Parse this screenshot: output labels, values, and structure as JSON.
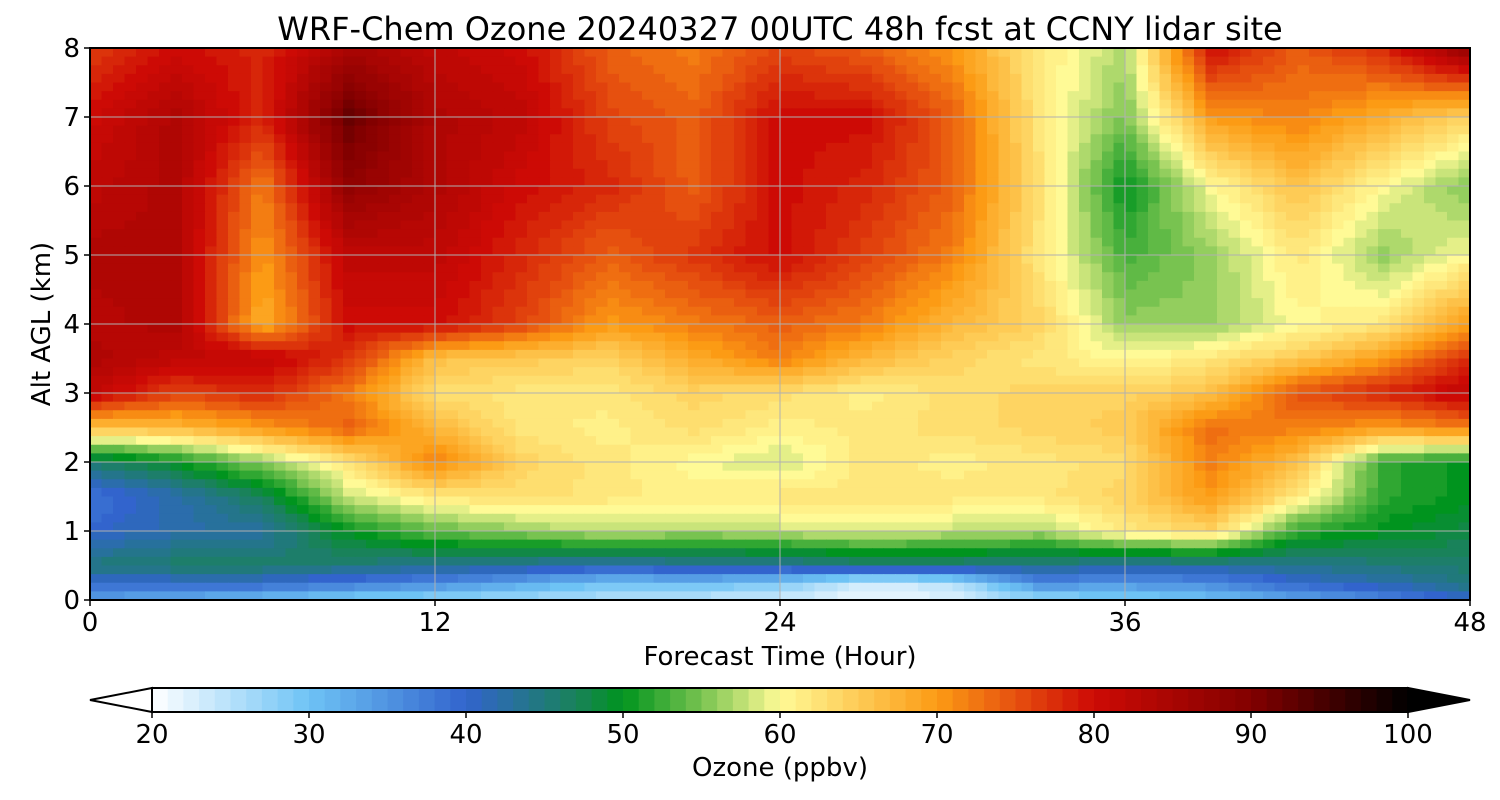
{
  "chart_data": {
    "type": "heatmap",
    "title": "WRF-Chem Ozone  20240327 00UTC 48h fcst at CCNY lidar site",
    "xlabel": "Forecast Time (Hour)",
    "ylabel": "Alt AGL (km)",
    "xlim": [
      0,
      48
    ],
    "ylim": [
      0,
      8
    ],
    "xticks": [
      0,
      12,
      24,
      36,
      48
    ],
    "yticks": [
      0,
      1,
      2,
      3,
      4,
      5,
      6,
      7,
      8
    ],
    "grid": true,
    "colorbar": {
      "label": "Ozone  (ppbv)",
      "vmin": 20,
      "vmax": 100,
      "ticks": [
        20,
        30,
        40,
        50,
        60,
        70,
        80,
        90,
        100
      ],
      "extend": "both",
      "orientation": "horizontal"
    },
    "x": [
      0,
      3,
      6,
      9,
      12,
      15,
      18,
      21,
      24,
      27,
      30,
      33,
      36,
      39,
      42,
      45,
      48
    ],
    "y": [
      0,
      0.25,
      0.5,
      1,
      1.5,
      2,
      2.5,
      3,
      3.5,
      4,
      5,
      6,
      7,
      8
    ],
    "z": [
      [
        33,
        32,
        30,
        28,
        27,
        26,
        25,
        24,
        23,
        21,
        22,
        27,
        28,
        30,
        33,
        36,
        40
      ],
      [
        40,
        40,
        40,
        38,
        36,
        33,
        30,
        31,
        29,
        23,
        25,
        36,
        35,
        36,
        40,
        42,
        45
      ],
      [
        45,
        46,
        46,
        45,
        44,
        43,
        42,
        43,
        43,
        45,
        45,
        44,
        43,
        43,
        44,
        45,
        46
      ],
      [
        40,
        42,
        43,
        50,
        54,
        56,
        58,
        57,
        58,
        59,
        58,
        57,
        62,
        64,
        52,
        50,
        48
      ],
      [
        38,
        42,
        47,
        58,
        62,
        63,
        62,
        61,
        62,
        62,
        62,
        62,
        64,
        70,
        62,
        52,
        50
      ],
      [
        46,
        50,
        56,
        62,
        72,
        64,
        62,
        60,
        58,
        62,
        61,
        62,
        63,
        72,
        66,
        52,
        50
      ],
      [
        66,
        67,
        70,
        74,
        67,
        62,
        61,
        63,
        61,
        62,
        63,
        64,
        65,
        73,
        72,
        70,
        72
      ],
      [
        82,
        76,
        78,
        72,
        63,
        62,
        62,
        64,
        63,
        61,
        63,
        64,
        64,
        66,
        75,
        78,
        82
      ],
      [
        84,
        82,
        82,
        77,
        66,
        65,
        64,
        68,
        72,
        67,
        64,
        62,
        60,
        62,
        65,
        70,
        78
      ],
      [
        83,
        84,
        68,
        80,
        80,
        76,
        70,
        72,
        74,
        72,
        67,
        64,
        56,
        56,
        60,
        62,
        70
      ],
      [
        84,
        84,
        70,
        82,
        82,
        78,
        74,
        77,
        80,
        76,
        72,
        62,
        53,
        56,
        62,
        56,
        60
      ],
      [
        82,
        84,
        72,
        88,
        84,
        80,
        78,
        74,
        80,
        78,
        74,
        63,
        50,
        60,
        66,
        60,
        55
      ],
      [
        80,
        84,
        78,
        92,
        84,
        82,
        76,
        74,
        80,
        80,
        74,
        62,
        55,
        70,
        72,
        68,
        64
      ],
      [
        76,
        80,
        78,
        85,
        82,
        80,
        74,
        72,
        76,
        74,
        70,
        62,
        57,
        80,
        74,
        78,
        88
      ]
    ]
  }
}
